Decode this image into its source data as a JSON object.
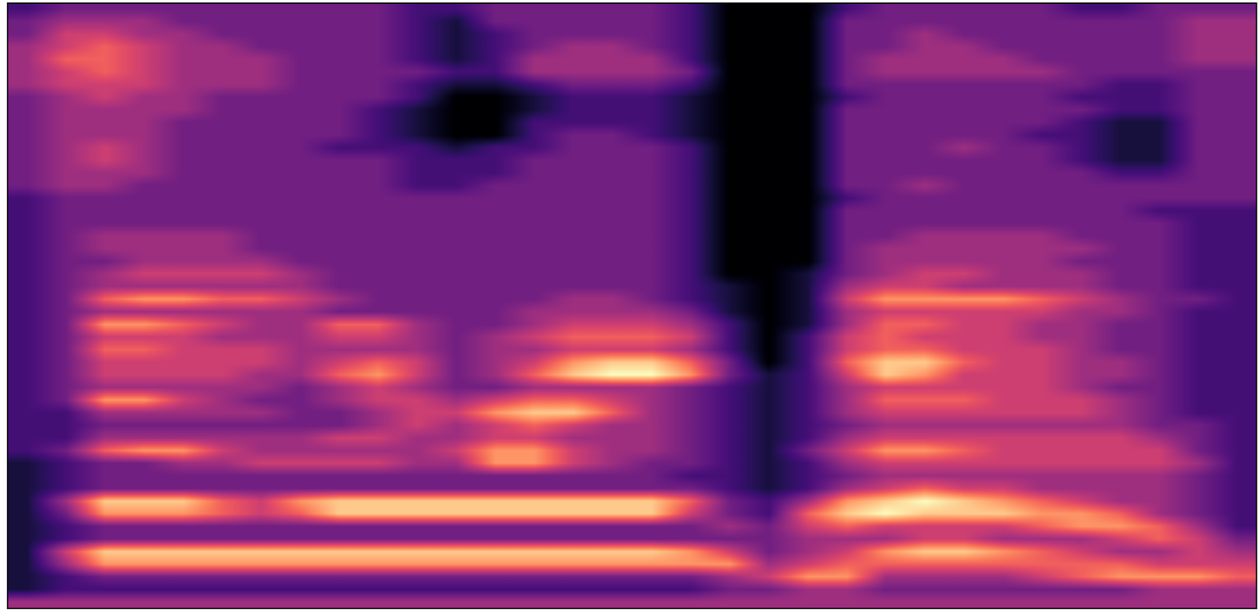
{
  "chart_data": {
    "type": "heatmap",
    "tick_labels": false,
    "cells": [
      [
        2,
        3,
        3,
        3,
        3,
        3,
        3,
        3,
        3,
        3,
        2,
        2,
        3,
        3,
        3,
        3,
        3,
        2,
        0,
        0,
        0,
        2,
        3,
        3,
        3,
        3,
        3,
        2,
        2,
        3,
        3,
        3
      ],
      [
        3,
        4,
        4,
        4,
        3,
        3,
        3,
        3,
        3,
        3,
        2,
        1,
        3,
        3,
        3,
        3,
        3,
        2,
        0,
        0,
        0,
        3,
        3,
        3,
        3,
        3,
        3,
        3,
        3,
        3,
        4,
        4
      ],
      [
        3,
        5,
        5,
        4,
        4,
        3,
        3,
        3,
        3,
        3,
        2,
        1,
        2,
        3,
        3,
        3,
        3,
        2,
        0,
        0,
        0,
        3,
        3,
        4,
        3,
        3,
        3,
        3,
        3,
        3,
        4,
        4
      ],
      [
        4,
        5,
        6,
        5,
        4,
        4,
        3,
        3,
        3,
        3,
        2,
        1,
        2,
        3,
        4,
        4,
        3,
        2,
        0,
        0,
        0,
        3,
        3,
        4,
        4,
        3,
        3,
        3,
        3,
        3,
        4,
        4
      ],
      [
        4,
        6,
        6,
        5,
        4,
        4,
        4,
        3,
        3,
        3,
        2,
        1,
        2,
        4,
        4,
        4,
        4,
        2,
        0,
        0,
        0,
        3,
        4,
        4,
        4,
        4,
        3,
        3,
        3,
        3,
        4,
        4
      ],
      [
        4,
        5,
        6,
        5,
        4,
        4,
        4,
        3,
        3,
        3,
        3,
        2,
        2,
        4,
        4,
        4,
        4,
        3,
        0,
        0,
        0,
        3,
        4,
        4,
        4,
        4,
        4,
        3,
        3,
        3,
        3,
        3
      ],
      [
        4,
        5,
        5,
        5,
        4,
        4,
        4,
        3,
        3,
        3,
        2,
        1,
        1,
        2,
        3,
        3,
        3,
        2,
        0,
        0,
        0,
        3,
        3,
        3,
        3,
        3,
        3,
        3,
        2,
        2,
        3,
        3
      ],
      [
        3,
        4,
        5,
        4,
        4,
        3,
        3,
        3,
        3,
        3,
        2,
        0,
        0,
        1,
        2,
        2,
        2,
        1,
        0,
        0,
        0,
        2,
        3,
        3,
        3,
        3,
        3,
        2,
        2,
        2,
        3,
        3
      ],
      [
        3,
        4,
        4,
        4,
        4,
        3,
        3,
        3,
        3,
        2,
        1,
        0,
        0,
        1,
        2,
        2,
        2,
        1,
        0,
        0,
        0,
        3,
        3,
        3,
        3,
        3,
        3,
        3,
        2,
        2,
        3,
        3
      ],
      [
        3,
        4,
        4,
        4,
        3,
        3,
        3,
        3,
        3,
        2,
        1,
        0,
        0,
        2,
        2,
        2,
        2,
        1,
        0,
        0,
        0,
        3,
        3,
        3,
        3,
        3,
        3,
        2,
        1,
        1,
        3,
        3
      ],
      [
        3,
        4,
        4,
        4,
        3,
        3,
        3,
        3,
        3,
        2,
        1,
        0,
        0,
        2,
        3,
        3,
        2,
        1,
        0,
        0,
        0,
        3,
        3,
        3,
        3,
        3,
        2,
        2,
        1,
        1,
        3,
        3
      ],
      [
        3,
        4,
        5,
        4,
        3,
        3,
        3,
        3,
        2,
        2,
        2,
        1,
        2,
        2,
        3,
        3,
        3,
        2,
        0,
        0,
        0,
        3,
        3,
        3,
        4,
        3,
        3,
        2,
        1,
        1,
        3,
        3
      ],
      [
        3,
        4,
        5,
        4,
        3,
        3,
        3,
        3,
        3,
        3,
        2,
        2,
        2,
        3,
        3,
        3,
        3,
        2,
        0,
        0,
        0,
        3,
        3,
        3,
        3,
        3,
        3,
        2,
        1,
        1,
        3,
        3
      ],
      [
        3,
        4,
        4,
        4,
        3,
        3,
        3,
        3,
        3,
        3,
        2,
        2,
        2,
        3,
        3,
        3,
        3,
        2,
        0,
        0,
        0,
        3,
        3,
        3,
        3,
        3,
        3,
        3,
        2,
        2,
        3,
        3
      ],
      [
        3,
        4,
        4,
        3,
        3,
        3,
        3,
        3,
        3,
        3,
        2,
        2,
        3,
        3,
        3,
        3,
        3,
        2,
        0,
        0,
        0,
        3,
        3,
        4,
        3,
        3,
        3,
        3,
        3,
        3,
        3,
        3
      ],
      [
        2,
        3,
        3,
        3,
        3,
        3,
        3,
        3,
        3,
        3,
        3,
        3,
        3,
        3,
        3,
        3,
        3,
        2,
        0,
        0,
        0,
        2,
        3,
        3,
        3,
        3,
        3,
        3,
        3,
        3,
        3,
        3
      ],
      [
        2,
        3,
        3,
        3,
        3,
        3,
        3,
        3,
        3,
        3,
        3,
        3,
        3,
        3,
        3,
        3,
        3,
        2,
        0,
        0,
        0,
        3,
        3,
        3,
        3,
        3,
        3,
        3,
        3,
        2,
        2,
        2
      ],
      [
        2,
        3,
        3,
        3,
        3,
        3,
        3,
        3,
        3,
        3,
        3,
        3,
        3,
        3,
        3,
        3,
        3,
        2,
        0,
        0,
        0,
        3,
        3,
        3,
        3,
        3,
        3,
        3,
        3,
        3,
        2,
        2
      ],
      [
        2,
        3,
        4,
        4,
        4,
        4,
        3,
        3,
        3,
        3,
        3,
        3,
        3,
        3,
        3,
        3,
        3,
        2,
        0,
        0,
        0,
        3,
        3,
        4,
        4,
        4,
        4,
        3,
        3,
        3,
        2,
        2
      ],
      [
        2,
        3,
        4,
        4,
        4,
        4,
        3,
        3,
        3,
        3,
        3,
        3,
        3,
        3,
        3,
        3,
        3,
        2,
        0,
        0,
        0,
        3,
        4,
        4,
        4,
        4,
        4,
        4,
        3,
        3,
        2,
        2
      ],
      [
        2,
        3,
        3,
        4,
        4,
        4,
        4,
        3,
        3,
        3,
        3,
        3,
        3,
        3,
        3,
        3,
        3,
        2,
        0,
        0,
        0,
        3,
        4,
        4,
        4,
        4,
        4,
        3,
        3,
        3,
        2,
        2
      ],
      [
        2,
        3,
        4,
        5,
        5,
        5,
        5,
        4,
        3,
        3,
        3,
        3,
        3,
        3,
        3,
        3,
        3,
        2,
        0,
        0,
        1,
        3,
        4,
        5,
        5,
        4,
        4,
        4,
        3,
        3,
        2,
        2
      ],
      [
        2,
        3,
        4,
        4,
        4,
        4,
        4,
        4,
        3,
        3,
        3,
        3,
        3,
        3,
        3,
        3,
        3,
        2,
        1,
        0,
        1,
        4,
        5,
        5,
        4,
        4,
        4,
        4,
        3,
        3,
        2,
        2
      ],
      [
        2,
        3,
        6,
        7,
        7,
        6,
        6,
        5,
        4,
        3,
        3,
        3,
        3,
        3,
        4,
        4,
        3,
        2,
        1,
        0,
        1,
        5,
        7,
        7,
        7,
        7,
        6,
        5,
        4,
        3,
        3,
        2
      ],
      [
        2,
        3,
        4,
        4,
        4,
        4,
        4,
        4,
        3,
        3,
        3,
        3,
        3,
        4,
        4,
        4,
        4,
        3,
        1,
        0,
        1,
        4,
        5,
        5,
        5,
        5,
        5,
        4,
        4,
        3,
        2,
        2
      ],
      [
        2,
        3,
        7,
        7,
        6,
        5,
        4,
        4,
        6,
        6,
        4,
        3,
        3,
        4,
        5,
        5,
        5,
        4,
        2,
        0,
        1,
        4,
        6,
        6,
        5,
        5,
        4,
        4,
        3,
        3,
        2,
        2
      ],
      [
        2,
        3,
        5,
        5,
        5,
        4,
        4,
        4,
        5,
        5,
        4,
        3,
        4,
        5,
        6,
        6,
        6,
        5,
        2,
        0,
        2,
        5,
        6,
        5,
        5,
        5,
        4,
        4,
        3,
        3,
        2,
        2
      ],
      [
        2,
        3,
        6,
        6,
        5,
        5,
        5,
        4,
        4,
        4,
        4,
        3,
        4,
        4,
        5,
        5,
        5,
        4,
        2,
        0,
        2,
        5,
        6,
        6,
        5,
        5,
        5,
        4,
        3,
        3,
        2,
        2
      ],
      [
        2,
        3,
        5,
        5,
        5,
        5,
        5,
        4,
        5,
        6,
        5,
        3,
        4,
        5,
        7,
        8,
        8,
        6,
        3,
        0,
        2,
        6,
        8,
        8,
        6,
        5,
        5,
        4,
        4,
        3,
        2,
        2
      ],
      [
        2,
        3,
        5,
        5,
        5,
        5,
        4,
        4,
        6,
        7,
        5,
        3,
        4,
        6,
        8,
        9,
        9,
        7,
        3,
        1,
        2,
        5,
        8,
        7,
        5,
        5,
        5,
        4,
        4,
        3,
        2,
        2
      ],
      [
        2,
        3,
        4,
        4,
        4,
        4,
        4,
        3,
        4,
        5,
        4,
        3,
        3,
        4,
        4,
        4,
        4,
        3,
        2,
        1,
        2,
        4,
        5,
        5,
        5,
        5,
        5,
        4,
        3,
        3,
        2,
        2
      ],
      [
        2,
        3,
        7,
        7,
        5,
        4,
        3,
        3,
        4,
        5,
        5,
        4,
        5,
        6,
        6,
        5,
        4,
        3,
        2,
        1,
        2,
        4,
        6,
        6,
        6,
        5,
        5,
        5,
        4,
        3,
        2,
        2
      ],
      [
        2,
        2,
        4,
        4,
        4,
        4,
        4,
        3,
        3,
        4,
        5,
        5,
        7,
        8,
        8,
        6,
        4,
        3,
        2,
        1,
        2,
        4,
        5,
        5,
        5,
        5,
        5,
        5,
        4,
        3,
        2,
        2
      ],
      [
        2,
        2,
        3,
        3,
        3,
        3,
        3,
        3,
        3,
        4,
        5,
        4,
        5,
        6,
        5,
        4,
        4,
        3,
        2,
        1,
        2,
        3,
        4,
        4,
        4,
        4,
        4,
        4,
        4,
        3,
        3,
        2
      ],
      [
        2,
        2,
        4,
        4,
        4,
        4,
        4,
        4,
        5,
        5,
        4,
        4,
        5,
        5,
        4,
        4,
        4,
        3,
        2,
        1,
        2,
        4,
        5,
        5,
        5,
        5,
        5,
        5,
        5,
        4,
        3,
        2
      ],
      [
        2,
        3,
        6,
        7,
        7,
        5,
        4,
        4,
        4,
        4,
        4,
        5,
        7,
        7,
        5,
        4,
        4,
        3,
        2,
        1,
        3,
        5,
        7,
        7,
        6,
        5,
        5,
        5,
        5,
        5,
        3,
        2
      ],
      [
        1,
        2,
        3,
        3,
        4,
        4,
        5,
        5,
        5,
        5,
        4,
        4,
        7,
        7,
        5,
        4,
        3,
        3,
        2,
        1,
        2,
        4,
        5,
        5,
        5,
        5,
        5,
        5,
        5,
        5,
        4,
        2
      ],
      [
        1,
        2,
        3,
        3,
        3,
        3,
        3,
        3,
        3,
        3,
        3,
        3,
        3,
        3,
        3,
        3,
        3,
        2,
        2,
        1,
        2,
        3,
        4,
        4,
        4,
        4,
        4,
        4,
        4,
        4,
        3,
        2
      ],
      [
        1,
        2,
        3,
        3,
        3,
        3,
        3,
        3,
        3,
        3,
        3,
        3,
        3,
        3,
        3,
        3,
        3,
        3,
        2,
        1,
        2,
        4,
        5,
        6,
        5,
        5,
        4,
        4,
        4,
        4,
        3,
        2
      ],
      [
        1,
        4,
        8,
        8,
        8,
        6,
        5,
        7,
        8,
        8,
        8,
        8,
        8,
        8,
        8,
        8,
        8,
        6,
        3,
        2,
        4,
        7,
        8,
        9,
        8,
        7,
        6,
        5,
        4,
        4,
        3,
        2
      ],
      [
        1,
        3,
        7,
        7,
        7,
        6,
        5,
        6,
        8,
        8,
        8,
        8,
        8,
        8,
        8,
        8,
        8,
        5,
        3,
        2,
        6,
        8,
        9,
        8,
        8,
        8,
        7,
        7,
        6,
        4,
        3,
        2
      ],
      [
        1,
        2,
        3,
        3,
        3,
        3,
        3,
        3,
        3,
        3,
        3,
        3,
        3,
        3,
        3,
        3,
        3,
        3,
        4,
        3,
        5,
        6,
        5,
        5,
        5,
        5,
        6,
        7,
        7,
        6,
        4,
        2
      ],
      [
        1,
        2,
        3,
        3,
        3,
        3,
        3,
        3,
        3,
        3,
        3,
        3,
        3,
        3,
        3,
        3,
        3,
        3,
        3,
        3,
        4,
        4,
        4,
        5,
        5,
        4,
        4,
        4,
        5,
        6,
        5,
        3
      ],
      [
        1,
        5,
        8,
        8,
        8,
        8,
        8,
        8,
        8,
        8,
        8,
        8,
        8,
        8,
        8,
        8,
        8,
        7,
        5,
        3,
        4,
        5,
        7,
        8,
        8,
        7,
        6,
        5,
        4,
        4,
        5,
        4
      ],
      [
        1,
        4,
        7,
        7,
        7,
        7,
        7,
        7,
        7,
        7,
        7,
        7,
        7,
        7,
        7,
        7,
        7,
        7,
        7,
        4,
        5,
        6,
        6,
        6,
        6,
        6,
        6,
        6,
        6,
        5,
        5,
        5
      ],
      [
        1,
        2,
        3,
        3,
        3,
        3,
        3,
        3,
        3,
        3,
        3,
        3,
        3,
        3,
        3,
        3,
        3,
        3,
        4,
        5,
        7,
        7,
        4,
        4,
        4,
        4,
        5,
        6,
        7,
        7,
        7,
        6
      ],
      [
        1,
        2,
        2,
        2,
        2,
        2,
        2,
        2,
        2,
        2,
        2,
        2,
        2,
        2,
        2,
        2,
        2,
        2,
        3,
        3,
        4,
        4,
        3,
        3,
        3,
        3,
        3,
        3,
        3,
        4,
        4,
        4
      ],
      [
        4,
        4,
        4,
        4,
        4,
        4,
        4,
        4,
        4,
        4,
        4,
        4,
        4,
        4,
        4,
        4,
        4,
        4,
        4,
        4,
        4,
        4,
        4,
        4,
        4,
        4,
        4,
        4,
        4,
        4,
        4,
        4
      ]
    ]
  }
}
